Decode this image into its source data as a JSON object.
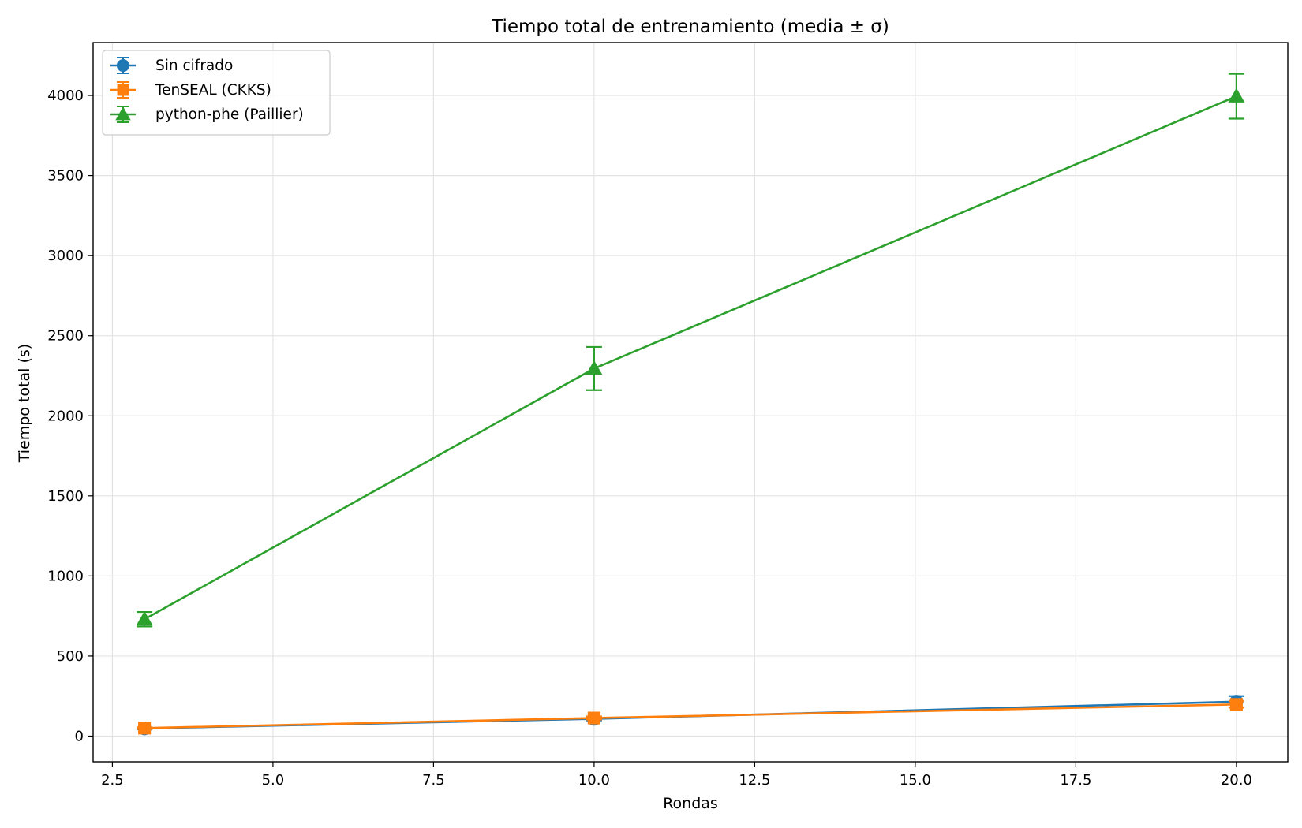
{
  "chart_data": {
    "type": "line",
    "title": "Tiempo total de entrenamiento (media ± σ)",
    "xlabel": "Rondas",
    "ylabel": "Tiempo total (s)",
    "xlim": [
      2.2,
      20.8
    ],
    "ylim": [
      -160,
      4330
    ],
    "xticks": [
      2.5,
      5.0,
      7.5,
      10.0,
      12.5,
      15.0,
      17.5,
      20.0
    ],
    "xtick_labels": [
      "2.5",
      "5.0",
      "7.5",
      "10.0",
      "12.5",
      "15.0",
      "17.5",
      "20.0"
    ],
    "yticks": [
      0,
      500,
      1000,
      1500,
      2000,
      2500,
      3000,
      3500,
      4000
    ],
    "ytick_labels": [
      "0",
      "500",
      "1000",
      "1500",
      "2000",
      "2500",
      "3000",
      "3500",
      "4000"
    ],
    "grid": true,
    "legend_position": "top-left",
    "x": [
      3,
      10,
      20
    ],
    "series": [
      {
        "name": "Sin cifrado",
        "color": "#1f77b4",
        "marker": "circle",
        "values": [
          48,
          108,
          215
        ],
        "errors": [
          5,
          10,
          35
        ]
      },
      {
        "name": "TenSEAL (CKKS)",
        "color": "#ff7f0e",
        "marker": "square",
        "values": [
          50,
          113,
          198
        ],
        "errors": [
          5,
          10,
          20
        ]
      },
      {
        "name": "python-phe (Paillier)",
        "color": "#2ca02c",
        "marker": "triangle",
        "values": [
          730,
          2295,
          3995
        ],
        "errors": [
          45,
          135,
          140
        ]
      }
    ]
  }
}
